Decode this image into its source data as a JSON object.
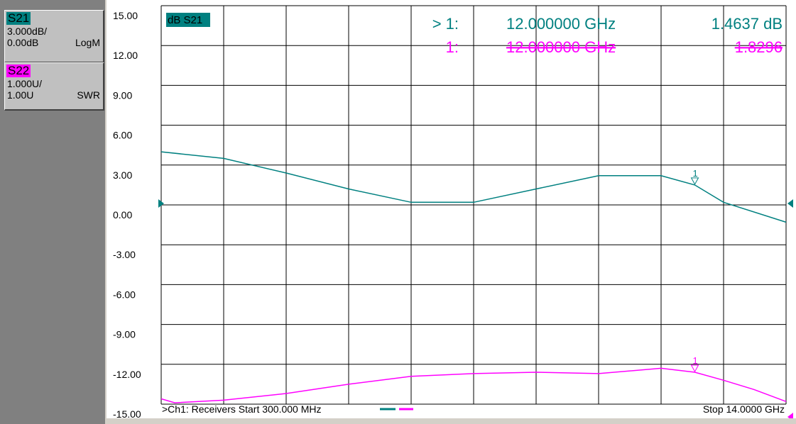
{
  "traces": [
    {
      "name": "S21",
      "scale": "3.000dB/",
      "reference": "0.00dB",
      "format": "LogM",
      "color": "#008080"
    },
    {
      "name": "S22",
      "scale": "1.000U/",
      "reference": "1.00U",
      "format": "SWR",
      "color": "#ff00ff"
    }
  ],
  "active_trace_label": "dB S21",
  "markers": [
    {
      "prefix": "> 1:",
      "frequency": "12.000000 GHz",
      "value": "1.4637 dB",
      "color": "#008080"
    },
    {
      "prefix": "1:",
      "frequency": "12.000000 GHz",
      "value": "1.8296",
      "color": "#ff00ff"
    }
  ],
  "footer": {
    "channel": ">Ch1: Receivers Start  300.000 MHz",
    "stop": "Stop  14.0000 GHz"
  },
  "chart_data": {
    "type": "line",
    "y_tick_labels": [
      "15.00",
      "12.00",
      "9.00",
      "6.00",
      "3.00",
      "0.00",
      "-3.00",
      "-6.00",
      "-9.00",
      "-12.00",
      "-15.00"
    ],
    "ylim": [
      -15,
      15
    ],
    "x_range_ghz": [
      0.3,
      14.0
    ],
    "x_divisions": 10,
    "y_divisions": 10,
    "grid": true,
    "reference_level": 0,
    "series": [
      {
        "name": "S21",
        "color": "#008080",
        "x": [
          0.3,
          1.67,
          3.04,
          4.41,
          5.78,
          7.15,
          8.52,
          9.89,
          11.26,
          12.0,
          12.63,
          14.0
        ],
        "y": [
          4.0,
          3.5,
          2.4,
          1.2,
          0.2,
          0.2,
          1.2,
          2.2,
          2.2,
          1.5,
          0.2,
          -1.3
        ],
        "marker_x": 12.0,
        "marker_label": "1"
      },
      {
        "name": "S22",
        "color": "#ff00ff",
        "x": [
          0.3,
          0.6,
          1.67,
          3.04,
          4.41,
          5.78,
          7.15,
          8.52,
          9.89,
          11.26,
          12.0,
          12.63,
          13.3,
          14.0
        ],
        "y": [
          -14.6,
          -14.9,
          -14.7,
          -14.2,
          -13.5,
          -12.9,
          -12.7,
          -12.6,
          -12.7,
          -12.3,
          -12.6,
          -13.2,
          -13.9,
          -14.8
        ],
        "marker_x": 12.0,
        "marker_label": "1"
      }
    ]
  }
}
